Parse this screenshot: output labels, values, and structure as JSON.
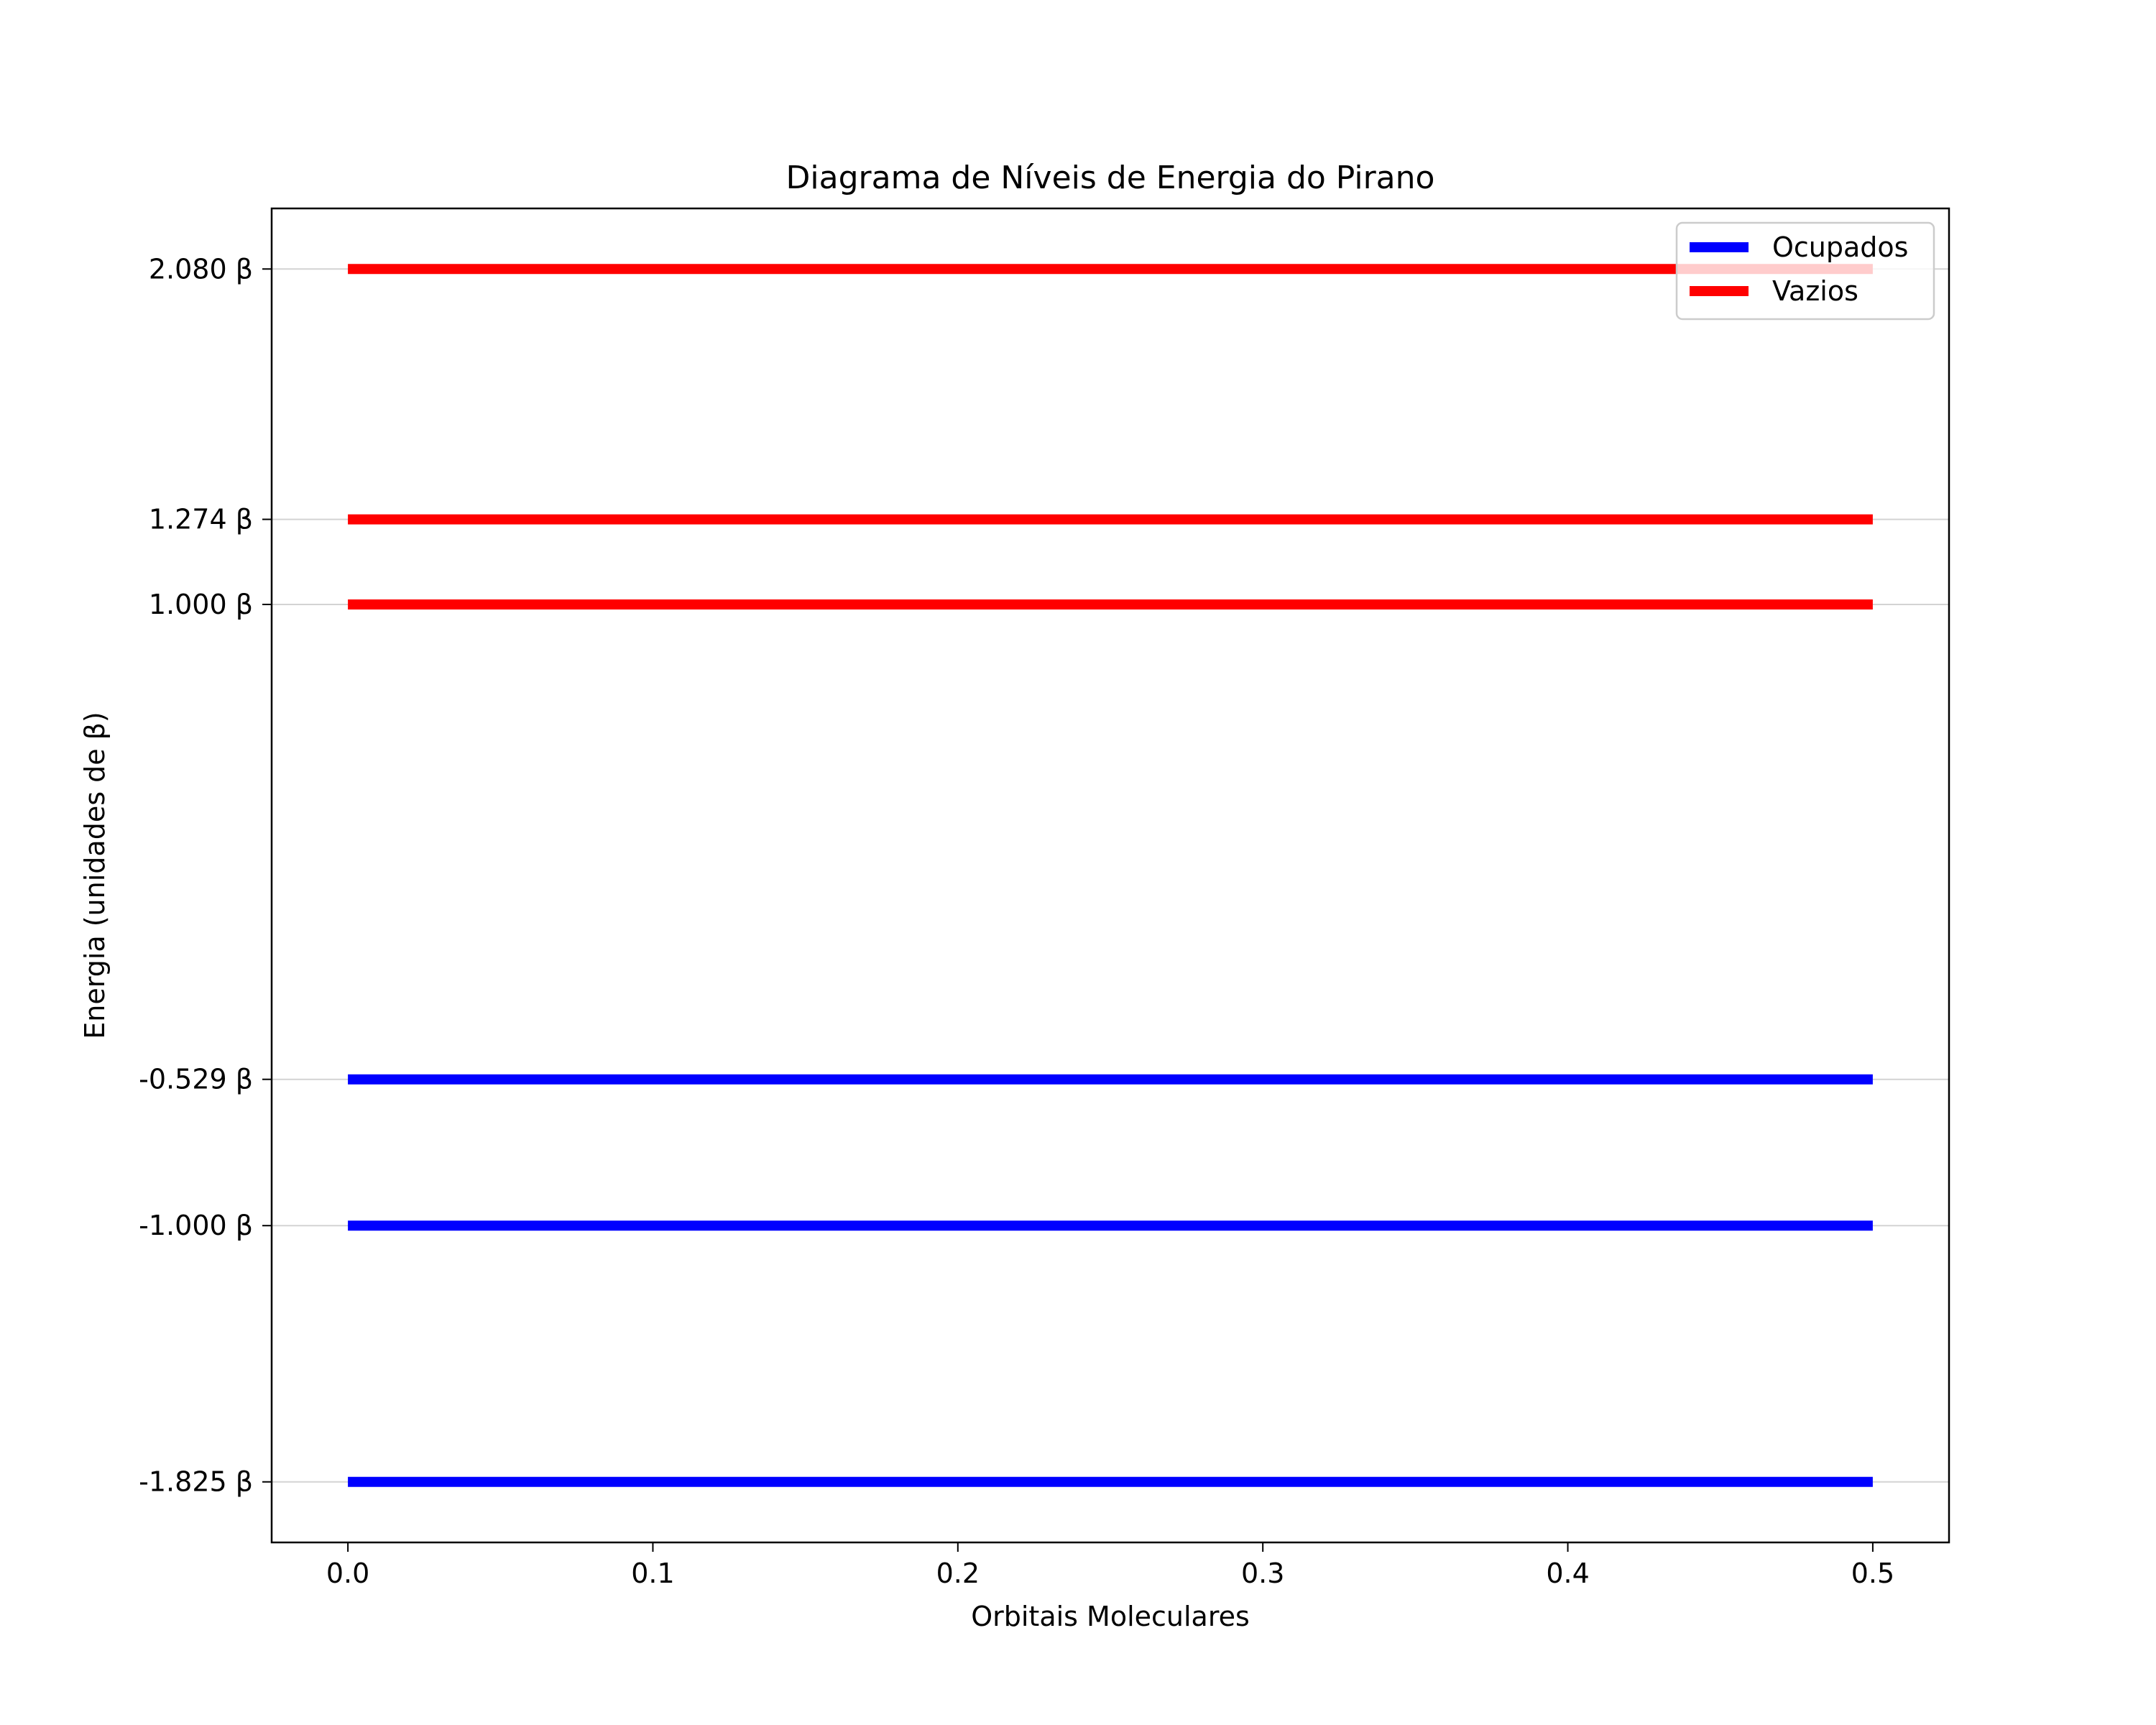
{
  "chart_data": {
    "type": "line",
    "title": "Diagrama de Níveis de Energia do Pirano",
    "xlabel": "Orbitais Moleculares",
    "ylabel": "Energia (unidades de β)",
    "xlim": [
      -0.025,
      0.525
    ],
    "ylim": [
      -2.02,
      2.275
    ],
    "x_ticks": [
      0.0,
      0.1,
      0.2,
      0.3,
      0.4,
      0.5
    ],
    "x_tick_labels": [
      "0.0",
      "0.1",
      "0.2",
      "0.3",
      "0.4",
      "0.5"
    ],
    "y_ticks": [
      -1.825,
      -1.0,
      -0.529,
      1.0,
      1.274,
      2.08
    ],
    "y_tick_labels": [
      "-1.825 β",
      "-1.000 β",
      "-0.529 β",
      "1.000 β",
      "1.274 β",
      "2.080 β"
    ],
    "grid": "horizontal at y ticks",
    "legend_position": "top-right",
    "series": [
      {
        "name": "Ocupados",
        "color": "#0000ff",
        "levels": [
          {
            "x": [
              0.0,
              0.5
            ],
            "y": -1.825
          },
          {
            "x": [
              0.0,
              0.5
            ],
            "y": -1.0
          },
          {
            "x": [
              0.0,
              0.5
            ],
            "y": -0.529
          }
        ]
      },
      {
        "name": "Vazios",
        "color": "#ff0000",
        "levels": [
          {
            "x": [
              0.0,
              0.5
            ],
            "y": 1.0
          },
          {
            "x": [
              0.0,
              0.5
            ],
            "y": 1.274
          },
          {
            "x": [
              0.0,
              0.5
            ],
            "y": 2.08
          }
        ]
      }
    ]
  }
}
